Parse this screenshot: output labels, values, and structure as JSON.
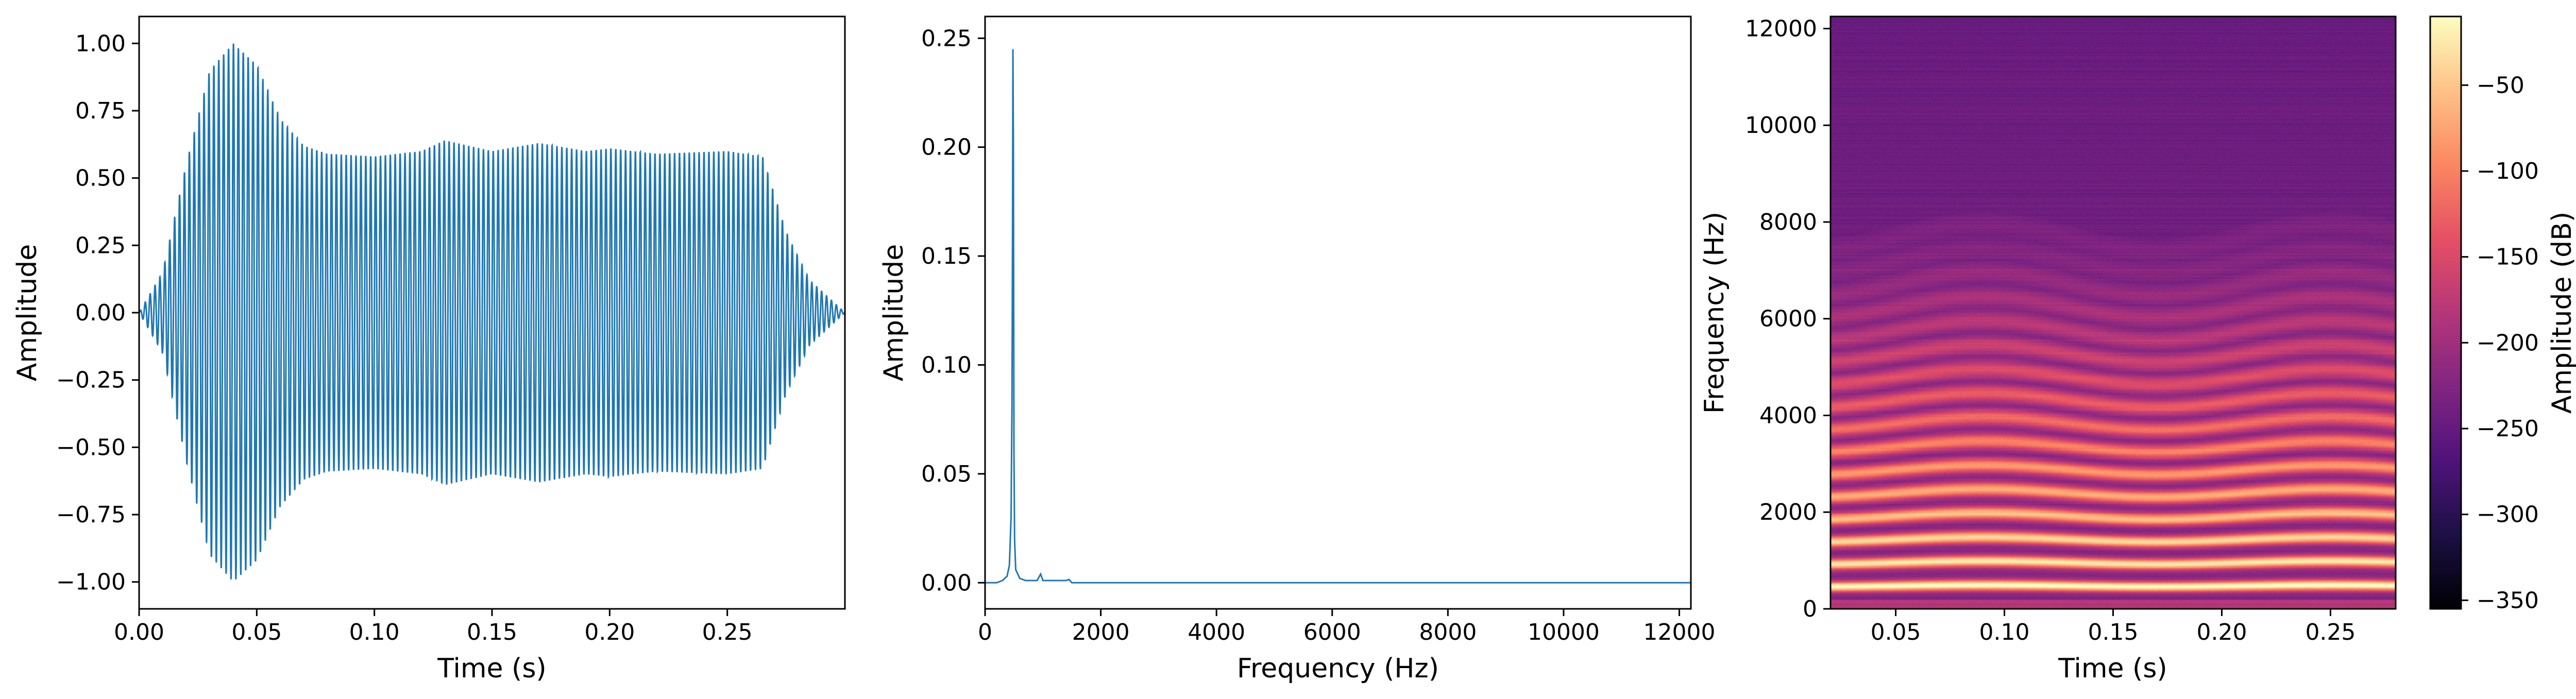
{
  "colors": {
    "waveform": "#1f77b4",
    "axes": "#000000",
    "background": "#ffffff",
    "colormap": "magma"
  },
  "chart_data": [
    {
      "type": "line",
      "id": "waveform",
      "xlabel": "Time (s)",
      "ylabel": "Amplitude",
      "xlim": [
        0.0,
        0.3
      ],
      "ylim": [
        -1.1,
        1.1
      ],
      "xticks": [
        "0.00",
        "0.05",
        "0.10",
        "0.15",
        "0.20",
        "0.25"
      ],
      "yticks": [
        "-1.00",
        "-0.75",
        "-0.50",
        "-0.25",
        "0.00",
        "0.25",
        "0.50",
        "0.75",
        "1.00"
      ],
      "signal": {
        "carrier_hz": 480,
        "envelope": [
          [
            0.0,
            0.0
          ],
          [
            0.01,
            0.15
          ],
          [
            0.02,
            0.55
          ],
          [
            0.03,
            0.9
          ],
          [
            0.04,
            1.0
          ],
          [
            0.05,
            0.92
          ],
          [
            0.06,
            0.72
          ],
          [
            0.07,
            0.62
          ],
          [
            0.08,
            0.59
          ],
          [
            0.1,
            0.58
          ],
          [
            0.12,
            0.6
          ],
          [
            0.13,
            0.64
          ],
          [
            0.15,
            0.6
          ],
          [
            0.17,
            0.63
          ],
          [
            0.19,
            0.6
          ],
          [
            0.2,
            0.61
          ],
          [
            0.22,
            0.59
          ],
          [
            0.25,
            0.6
          ],
          [
            0.265,
            0.58
          ],
          [
            0.275,
            0.3
          ],
          [
            0.285,
            0.12
          ],
          [
            0.3,
            0.0
          ]
        ]
      }
    },
    {
      "type": "line",
      "id": "spectrum",
      "xlabel": "Frequency (Hz)",
      "ylabel": "Amplitude",
      "xlim": [
        0,
        12200
      ],
      "ylim": [
        -0.012,
        0.26
      ],
      "xticks": [
        "0",
        "2000",
        "4000",
        "6000",
        "8000",
        "10000",
        "12000"
      ],
      "yticks": [
        "0.00",
        "0.05",
        "0.10",
        "0.15",
        "0.20",
        "0.25"
      ],
      "points": [
        [
          0,
          0.0
        ],
        [
          200,
          0.0
        ],
        [
          300,
          0.001
        ],
        [
          380,
          0.003
        ],
        [
          420,
          0.008
        ],
        [
          450,
          0.03
        ],
        [
          465,
          0.08
        ],
        [
          475,
          0.16
        ],
        [
          482,
          0.245
        ],
        [
          490,
          0.2
        ],
        [
          500,
          0.06
        ],
        [
          510,
          0.02
        ],
        [
          530,
          0.006
        ],
        [
          600,
          0.002
        ],
        [
          700,
          0.001
        ],
        [
          900,
          0.001
        ],
        [
          960,
          0.004
        ],
        [
          1000,
          0.001
        ],
        [
          1400,
          0.001
        ],
        [
          1450,
          0.0015
        ],
        [
          1500,
          0.0
        ],
        [
          12200,
          0.0
        ]
      ]
    },
    {
      "type": "heatmap",
      "id": "spectrogram",
      "xlabel": "Time (s)",
      "ylabel": "Frequency (Hz)",
      "xlim": [
        0.02,
        0.28
      ],
      "ylim": [
        0,
        12250
      ],
      "xticks": [
        "0.05",
        "0.10",
        "0.15",
        "0.20",
        "0.25"
      ],
      "yticks": [
        "0",
        "2000",
        "4000",
        "6000",
        "8000",
        "10000",
        "12000"
      ],
      "fundamental_hz": 480,
      "colorbar": {
        "label": "Amplitude (dB)",
        "range": [
          -355,
          -10
        ],
        "ticks": [
          "-50",
          "-100",
          "-150",
          "-200",
          "-250",
          "-300",
          "-350"
        ]
      }
    }
  ]
}
